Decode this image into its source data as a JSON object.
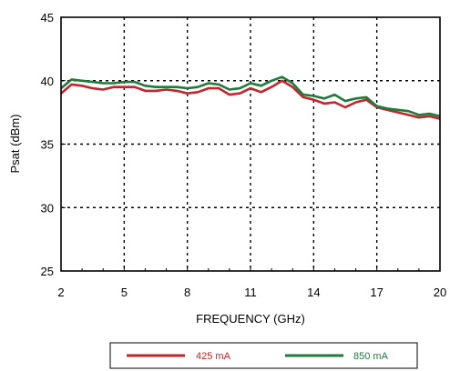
{
  "chart_data": {
    "type": "line",
    "title": "",
    "xlabel": "FREQUENCY (GHz)",
    "ylabel": "Psat (dBm)",
    "xlim": [
      2,
      20
    ],
    "ylim": [
      25,
      45
    ],
    "x_ticks": [
      2,
      5,
      8,
      11,
      14,
      17,
      20
    ],
    "x_tick_labels": [
      "2",
      "5",
      "8",
      "11",
      "14",
      "17",
      "20"
    ],
    "y_ticks": [
      25,
      30,
      35,
      40,
      45
    ],
    "y_tick_labels": [
      "25",
      "30",
      "35",
      "40",
      "45"
    ],
    "grid": "dashed",
    "legend_position": "bottom",
    "series": [
      {
        "name": "425 mA",
        "color": "#c0262b",
        "x": [
          2,
          2.5,
          3,
          3.5,
          4,
          4.5,
          5,
          5.5,
          6,
          6.5,
          7,
          7.5,
          8,
          8.5,
          9,
          9.5,
          10,
          10.5,
          11,
          11.5,
          12,
          12.5,
          13,
          13.5,
          14,
          14.5,
          15,
          15.5,
          16,
          16.5,
          17,
          17.5,
          18,
          18.5,
          19,
          19.5,
          20
        ],
        "y": [
          39.0,
          39.7,
          39.6,
          39.4,
          39.3,
          39.5,
          39.5,
          39.5,
          39.2,
          39.2,
          39.3,
          39.2,
          39.0,
          39.1,
          39.4,
          39.4,
          38.9,
          39.0,
          39.4,
          39.1,
          39.5,
          40.0,
          39.5,
          38.7,
          38.5,
          38.2,
          38.3,
          37.9,
          38.3,
          38.5,
          37.9,
          37.7,
          37.5,
          37.3,
          37.1,
          37.2,
          37.0
        ]
      },
      {
        "name": "850 mA",
        "color": "#1e7b3c",
        "x": [
          2,
          2.5,
          3,
          3.5,
          4,
          4.5,
          5,
          5.5,
          6,
          6.5,
          7,
          7.5,
          8,
          8.5,
          9,
          9.5,
          10,
          10.5,
          11,
          11.5,
          12,
          12.5,
          13,
          13.5,
          14,
          14.5,
          15,
          15.5,
          16,
          16.5,
          17,
          17.5,
          18,
          18.5,
          19,
          19.5,
          20
        ],
        "y": [
          39.4,
          40.1,
          40.0,
          39.9,
          39.8,
          39.8,
          39.9,
          39.9,
          39.6,
          39.5,
          39.5,
          39.5,
          39.4,
          39.5,
          39.8,
          39.7,
          39.3,
          39.4,
          39.8,
          39.6,
          40.0,
          40.3,
          39.8,
          38.9,
          38.8,
          38.6,
          38.9,
          38.4,
          38.6,
          38.7,
          38.0,
          37.8,
          37.7,
          37.6,
          37.3,
          37.4,
          37.2
        ]
      }
    ]
  }
}
